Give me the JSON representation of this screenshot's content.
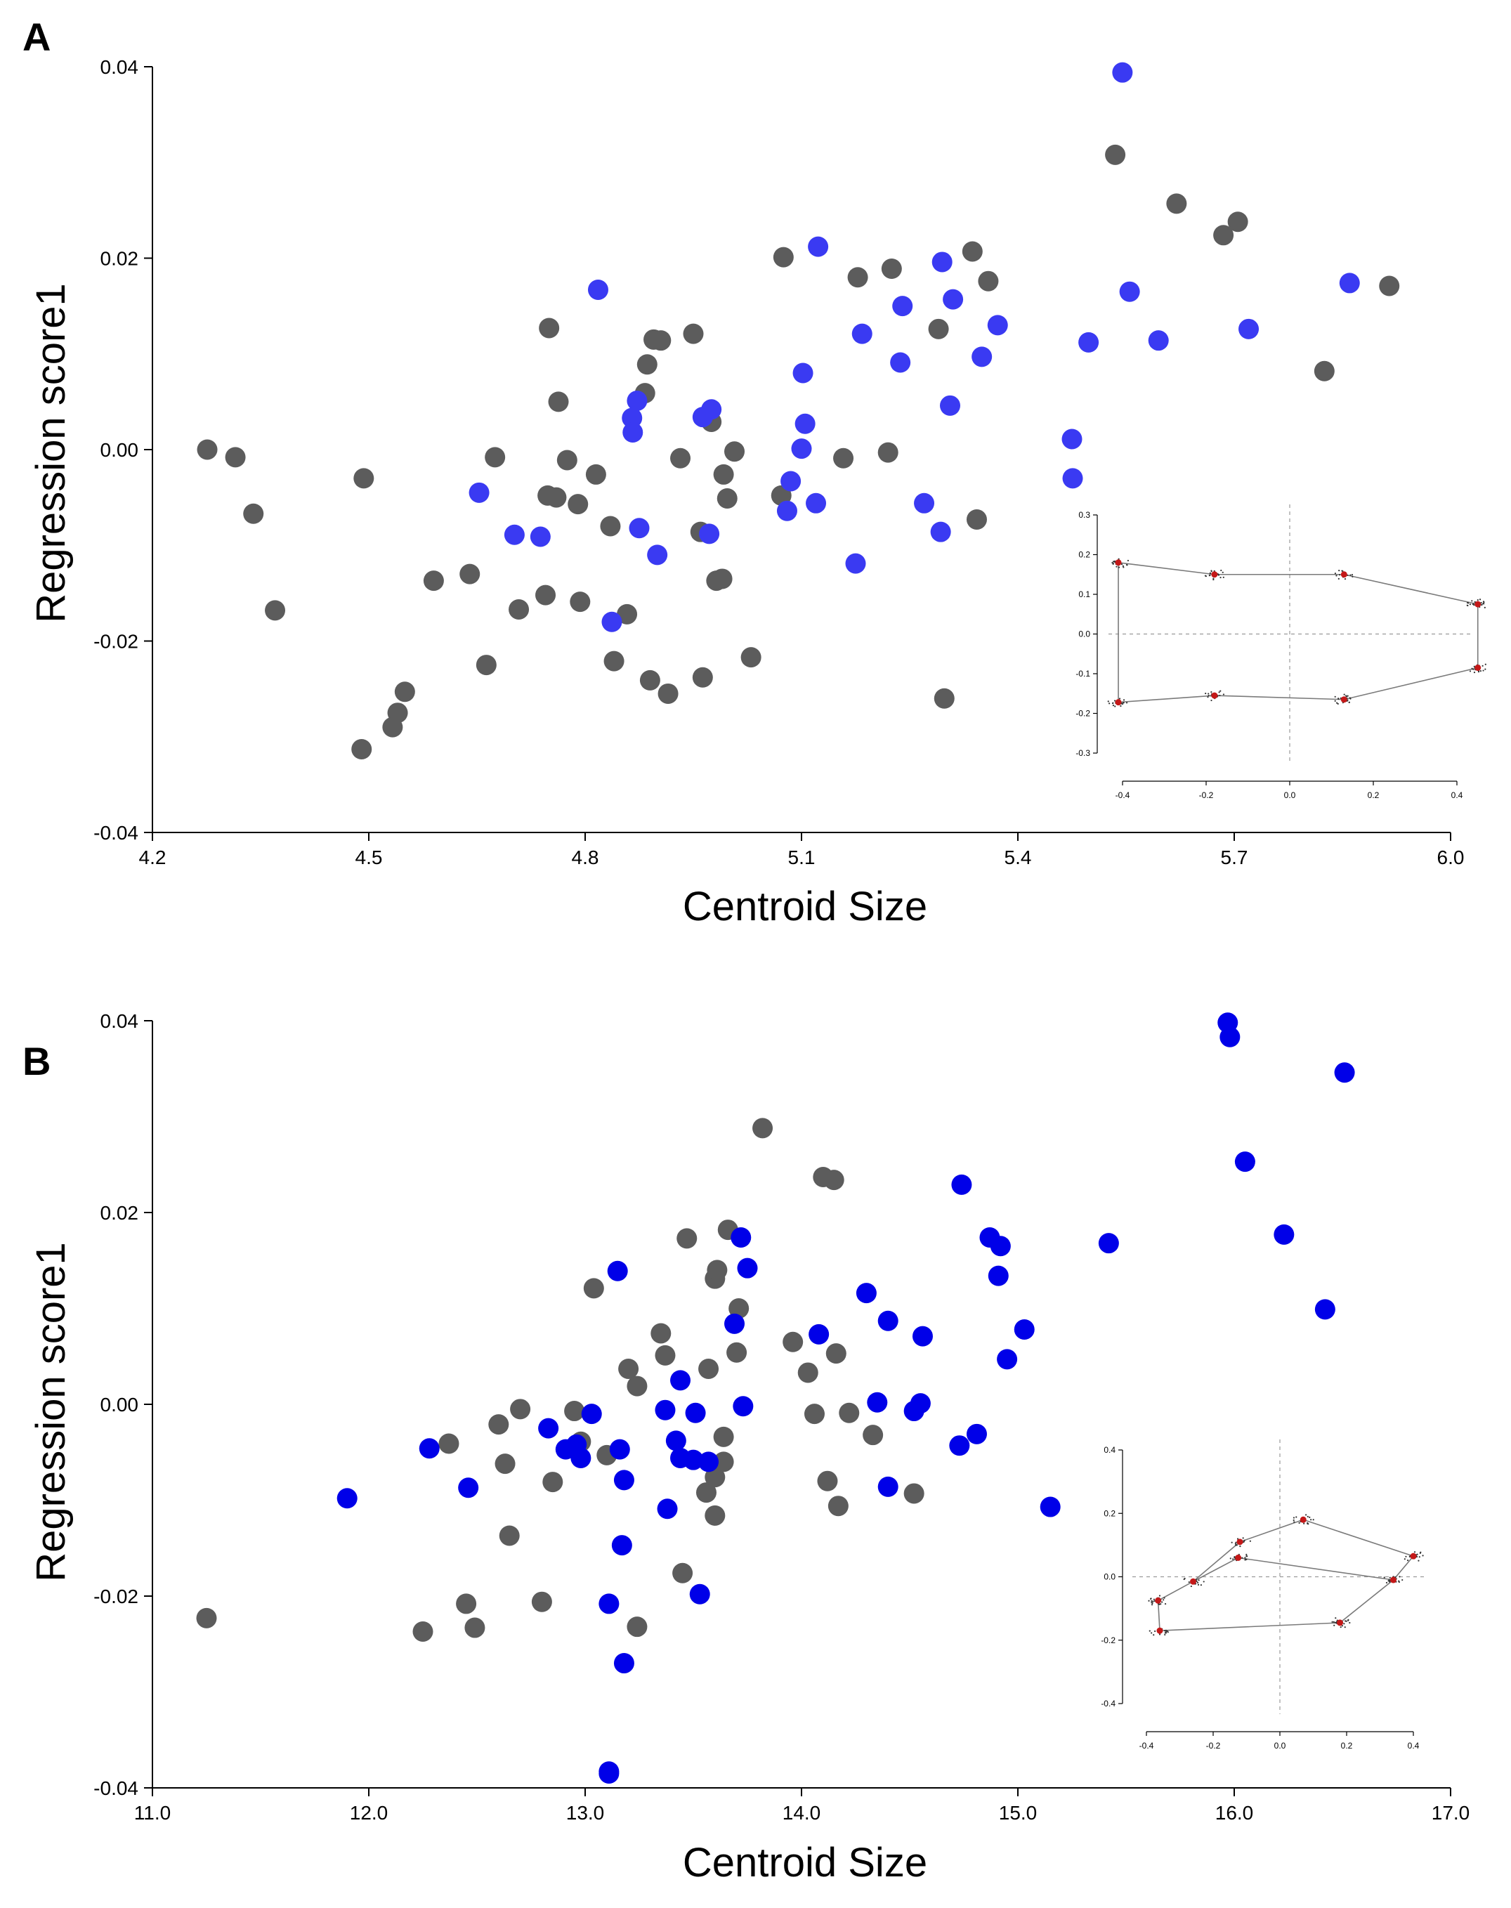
{
  "colors": {
    "gray": "#5c5c5c",
    "blue_A": "#3a3af2",
    "blue_B": "#0000e8",
    "landmark": "#c41818"
  },
  "panels": [
    {
      "letter": "A"
    },
    {
      "letter": "B"
    }
  ],
  "chart_data": [
    {
      "type": "scatter",
      "panel": "A",
      "xlabel": "Centroid Size",
      "ylabel": "Regression score1",
      "xlim": [
        4.2,
        6.0
      ],
      "ylim": [
        -0.04,
        0.04
      ],
      "xticks": [
        4.2,
        4.5,
        4.8,
        5.1,
        5.4,
        5.7,
        6.0
      ],
      "xtick_labels": [
        "4.2",
        "4.5",
        "4.8",
        "5.1",
        "5.4",
        "5.7",
        "6.0"
      ],
      "yticks": [
        0.04,
        0.02,
        0.0,
        -0.02,
        -0.04
      ],
      "ytick_labels": [
        "0.04",
        "0.02",
        "0.00",
        "-0.02",
        "-0.04"
      ],
      "series": [
        {
          "name": "gray",
          "color": "#5c5c5c",
          "points": [
            [
              4.276,
              0.0
            ],
            [
              4.315,
              -0.0008
            ],
            [
              4.34,
              -0.0067
            ],
            [
              4.37,
              -0.0168
            ],
            [
              4.49,
              -0.0313
            ],
            [
              4.493,
              -0.003
            ],
            [
              4.533,
              -0.029
            ],
            [
              4.54,
              -0.0275
            ],
            [
              4.55,
              -0.0253
            ],
            [
              4.59,
              -0.0137
            ],
            [
              4.64,
              -0.013
            ],
            [
              4.663,
              -0.0225
            ],
            [
              4.675,
              -0.0008
            ],
            [
              4.708,
              -0.0167
            ],
            [
              4.745,
              -0.0152
            ],
            [
              4.748,
              -0.0048
            ],
            [
              4.75,
              0.0127
            ],
            [
              4.76,
              -0.005
            ],
            [
              4.763,
              0.005
            ],
            [
              4.775,
              -0.0011
            ],
            [
              4.79,
              -0.0057
            ],
            [
              4.793,
              -0.0159
            ],
            [
              4.815,
              -0.0026
            ],
            [
              4.835,
              -0.008
            ],
            [
              4.84,
              -0.0221
            ],
            [
              4.858,
              -0.0172
            ],
            [
              4.883,
              0.0059
            ],
            [
              4.886,
              0.0089
            ],
            [
              4.89,
              -0.0241
            ],
            [
              4.895,
              0.0115
            ],
            [
              4.905,
              0.0114
            ],
            [
              4.915,
              -0.0255
            ],
            [
              4.932,
              -0.0009
            ],
            [
              4.95,
              0.0121
            ],
            [
              4.96,
              -0.0086
            ],
            [
              4.963,
              -0.0238
            ],
            [
              4.975,
              0.0029
            ],
            [
              4.982,
              -0.0137
            ],
            [
              4.99,
              -0.0135
            ],
            [
              4.992,
              -0.0026
            ],
            [
              4.997,
              -0.0051
            ],
            [
              5.007,
              -0.0002
            ],
            [
              5.03,
              -0.0217
            ],
            [
              5.072,
              -0.0048
            ],
            [
              5.075,
              0.0201
            ],
            [
              5.158,
              -0.0009
            ],
            [
              5.178,
              0.018
            ],
            [
              5.22,
              -0.0003
            ],
            [
              5.225,
              0.0189
            ],
            [
              5.29,
              0.0126
            ],
            [
              5.298,
              -0.026
            ],
            [
              5.337,
              0.0207
            ],
            [
              5.343,
              -0.0073
            ],
            [
              5.359,
              0.0176
            ],
            [
              5.535,
              0.0308
            ],
            [
              5.62,
              0.0257
            ],
            [
              5.685,
              0.0224
            ],
            [
              5.705,
              0.0238
            ],
            [
              5.825,
              0.0082
            ],
            [
              5.915,
              0.0171
            ]
          ]
        },
        {
          "name": "blue",
          "color": "#3a3af2",
          "points": [
            [
              4.653,
              -0.0045
            ],
            [
              4.702,
              -0.0089
            ],
            [
              4.738,
              -0.0091
            ],
            [
              4.818,
              0.0167
            ],
            [
              4.837,
              -0.018
            ],
            [
              4.865,
              0.0033
            ],
            [
              4.866,
              0.0018
            ],
            [
              4.872,
              0.0051
            ],
            [
              4.875,
              -0.0082
            ],
            [
              4.9,
              -0.011
            ],
            [
              4.963,
              0.0034
            ],
            [
              4.972,
              -0.0088
            ],
            [
              4.975,
              0.0042
            ],
            [
              5.08,
              -0.0064
            ],
            [
              5.085,
              -0.0033
            ],
            [
              5.1,
              0.0001
            ],
            [
              5.102,
              0.008
            ],
            [
              5.105,
              0.0027
            ],
            [
              5.12,
              -0.0056
            ],
            [
              5.123,
              0.0212
            ],
            [
              5.175,
              -0.0119
            ],
            [
              5.184,
              0.0121
            ],
            [
              5.237,
              0.0091
            ],
            [
              5.24,
              0.015
            ],
            [
              5.27,
              -0.0056
            ],
            [
              5.293,
              -0.0086
            ],
            [
              5.295,
              0.0196
            ],
            [
              5.306,
              0.0046
            ],
            [
              5.31,
              0.0157
            ],
            [
              5.35,
              0.0097
            ],
            [
              5.372,
              0.013
            ],
            [
              5.475,
              0.0011
            ],
            [
              5.476,
              -0.003
            ],
            [
              5.498,
              0.0112
            ],
            [
              5.545,
              0.0394
            ],
            [
              5.555,
              0.0165
            ],
            [
              5.595,
              0.0114
            ],
            [
              5.72,
              0.0126
            ],
            [
              5.86,
              0.0174
            ]
          ]
        }
      ],
      "inset": {
        "description": "Procrustes landmark configuration",
        "xlim": [
          -0.4,
          0.4
        ],
        "ylim": [
          -0.3,
          0.3
        ],
        "xtick_labels": [
          "-0.4",
          "-0.2",
          "0.0",
          "0.2",
          "0.4"
        ],
        "ytick_labels": [
          "0.3",
          "0.2",
          "0.1",
          "0.0",
          "-0.1",
          "-0.2",
          "-0.3"
        ],
        "xticks": [
          -0.4,
          -0.2,
          0.0,
          0.2,
          0.4
        ],
        "yticks": [
          0.3,
          0.2,
          0.1,
          0.0,
          -0.1,
          -0.2,
          -0.3
        ],
        "landmarks": [
          [
            -0.41,
            0.18
          ],
          [
            -0.18,
            0.15
          ],
          [
            0.13,
            0.15
          ],
          [
            0.45,
            0.075
          ],
          [
            0.45,
            -0.085
          ],
          [
            0.13,
            -0.165
          ],
          [
            -0.18,
            -0.155
          ],
          [
            -0.41,
            -0.172
          ]
        ],
        "outline": [
          0,
          1,
          2,
          3,
          4,
          5,
          6,
          7,
          0
        ]
      }
    },
    {
      "type": "scatter",
      "panel": "B",
      "xlabel": "Centroid Size",
      "ylabel": "Regression score1",
      "xlim": [
        11.0,
        17.0
      ],
      "ylim": [
        -0.04,
        0.04
      ],
      "xticks": [
        11.0,
        12.0,
        13.0,
        14.0,
        15.0,
        16.0,
        17.0
      ],
      "xtick_labels": [
        "11.0",
        "12.0",
        "13.0",
        "14.0",
        "15.0",
        "16.0",
        "17.0"
      ],
      "yticks": [
        0.04,
        0.02,
        0.0,
        -0.02,
        -0.04
      ],
      "ytick_labels": [
        "0.04",
        "0.02",
        "0.00",
        "-0.02",
        "-0.04"
      ],
      "series": [
        {
          "name": "gray",
          "color": "#5c5c5c",
          "points": [
            [
              11.25,
              -0.0223
            ],
            [
              12.25,
              -0.0237
            ],
            [
              12.37,
              -0.0041
            ],
            [
              12.45,
              -0.0208
            ],
            [
              12.49,
              -0.0233
            ],
            [
              12.6,
              -0.0021
            ],
            [
              12.63,
              -0.0062
            ],
            [
              12.65,
              -0.0137
            ],
            [
              12.7,
              -0.0005
            ],
            [
              12.8,
              -0.0206
            ],
            [
              12.85,
              -0.0081
            ],
            [
              12.95,
              -0.0007
            ],
            [
              12.98,
              -0.0039
            ],
            [
              13.04,
              0.0121
            ],
            [
              13.1,
              -0.0053
            ],
            [
              13.2,
              0.0037
            ],
            [
              13.24,
              0.0019
            ],
            [
              13.24,
              -0.0232
            ],
            [
              13.35,
              0.0074
            ],
            [
              13.37,
              0.0051
            ],
            [
              13.45,
              -0.0176
            ],
            [
              13.47,
              0.0173
            ],
            [
              13.56,
              -0.0092
            ],
            [
              13.57,
              0.0037
            ],
            [
              13.6,
              0.0131
            ],
            [
              13.6,
              -0.0076
            ],
            [
              13.6,
              -0.0116
            ],
            [
              13.61,
              0.014
            ],
            [
              13.64,
              -0.0034
            ],
            [
              13.64,
              -0.006
            ],
            [
              13.66,
              0.0182
            ],
            [
              13.7,
              0.0054
            ],
            [
              13.71,
              0.01
            ],
            [
              13.82,
              0.0288
            ],
            [
              13.96,
              0.0065
            ],
            [
              14.03,
              0.0033
            ],
            [
              14.06,
              -0.001
            ],
            [
              14.1,
              0.0237
            ],
            [
              14.12,
              -0.008
            ],
            [
              14.15,
              0.0234
            ],
            [
              14.16,
              0.0053
            ],
            [
              14.17,
              -0.0106
            ],
            [
              14.22,
              -0.0009
            ],
            [
              14.33,
              -0.0032
            ],
            [
              14.52,
              -0.0093
            ]
          ]
        },
        {
          "name": "blue",
          "color": "#0000e8",
          "points": [
            [
              11.9,
              -0.0098
            ],
            [
              12.28,
              -0.0046
            ],
            [
              12.46,
              -0.0087
            ],
            [
              12.83,
              -0.0025
            ],
            [
              12.91,
              -0.0047
            ],
            [
              12.96,
              -0.0042
            ],
            [
              12.98,
              -0.0056
            ],
            [
              13.03,
              -0.001
            ],
            [
              13.11,
              -0.0208
            ],
            [
              13.11,
              -0.0383
            ],
            [
              13.11,
              -0.0385
            ],
            [
              13.15,
              0.0139
            ],
            [
              13.16,
              -0.0047
            ],
            [
              13.17,
              -0.0147
            ],
            [
              13.18,
              -0.0079
            ],
            [
              13.18,
              -0.027
            ],
            [
              13.37,
              -0.0006
            ],
            [
              13.38,
              -0.0109
            ],
            [
              13.42,
              -0.0038
            ],
            [
              13.44,
              0.0025
            ],
            [
              13.44,
              -0.0056
            ],
            [
              13.5,
              -0.0058
            ],
            [
              13.51,
              -0.0009
            ],
            [
              13.53,
              -0.0198
            ],
            [
              13.57,
              -0.006
            ],
            [
              13.69,
              0.0084
            ],
            [
              13.72,
              0.0174
            ],
            [
              13.73,
              -0.0002
            ],
            [
              13.75,
              0.0142
            ],
            [
              14.08,
              0.0073
            ],
            [
              14.3,
              0.0116
            ],
            [
              14.35,
              0.0002
            ],
            [
              14.4,
              0.0087
            ],
            [
              14.4,
              -0.0086
            ],
            [
              14.52,
              -0.0007
            ],
            [
              14.55,
              0.0001
            ],
            [
              14.56,
              0.0071
            ],
            [
              14.73,
              -0.0043
            ],
            [
              14.74,
              0.0229
            ],
            [
              14.81,
              -0.0031
            ],
            [
              14.87,
              0.0174
            ],
            [
              14.91,
              0.0134
            ],
            [
              14.92,
              0.0165
            ],
            [
              14.95,
              0.0047
            ],
            [
              15.03,
              0.0078
            ],
            [
              15.15,
              -0.0107
            ],
            [
              15.42,
              0.0168
            ],
            [
              15.97,
              0.0398
            ],
            [
              15.98,
              0.0383
            ],
            [
              16.05,
              0.0253
            ],
            [
              16.23,
              0.0177
            ],
            [
              16.42,
              0.0099
            ],
            [
              16.51,
              0.0346
            ]
          ]
        }
      ],
      "inset": {
        "description": "Procrustes landmark configuration",
        "xlim": [
          -0.4,
          0.4
        ],
        "ylim": [
          -0.4,
          0.4
        ],
        "xtick_labels": [
          "-0.4",
          "-0.2",
          "0.0",
          "0.2",
          "0.4"
        ],
        "ytick_labels": [
          "0.4",
          "0.2",
          "0.0",
          "-0.2",
          "-0.4"
        ],
        "xticks": [
          -0.4,
          -0.2,
          0.0,
          0.2,
          0.4
        ],
        "yticks": [
          0.4,
          0.2,
          0.0,
          -0.2,
          -0.4
        ],
        "landmarks": [
          [
            -0.365,
            -0.075
          ],
          [
            -0.36,
            -0.17
          ],
          [
            -0.26,
            -0.015
          ],
          [
            -0.12,
            0.11
          ],
          [
            -0.125,
            0.06
          ],
          [
            0.07,
            0.18
          ],
          [
            0.4,
            0.065
          ],
          [
            0.34,
            -0.01
          ],
          [
            0.18,
            -0.145
          ]
        ],
        "outline": [
          0,
          2,
          3,
          5,
          6,
          7,
          8,
          1,
          0
        ],
        "extra_lines": [
          [
            2,
            4
          ],
          [
            4,
            7
          ]
        ]
      }
    }
  ]
}
